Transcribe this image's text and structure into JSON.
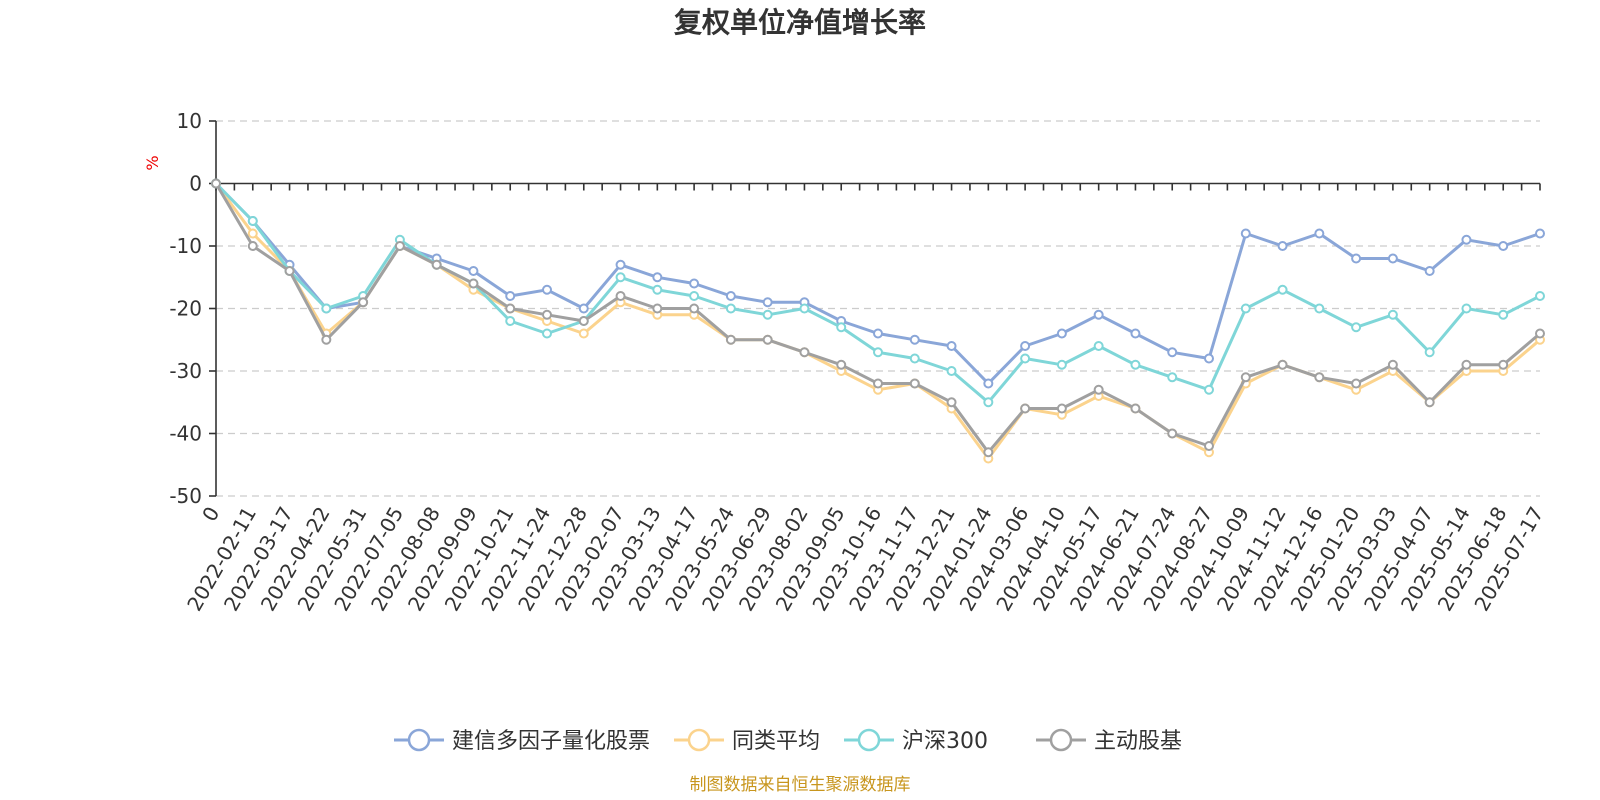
{
  "chart_data": {
    "type": "line",
    "title": "复权单位净值增长率",
    "ylabel": "%",
    "xlabel": "",
    "ylim": [
      -50,
      10
    ],
    "yticks": [
      10,
      0,
      -10,
      -20,
      -30,
      -40,
      -50
    ],
    "grid": true,
    "legend_position": "bottom",
    "x_categories": [
      "0",
      "2022-02-11",
      "2022-03-17",
      "2022-04-22",
      "2022-05-31",
      "2022-07-05",
      "2022-08-08",
      "2022-09-09",
      "2022-10-21",
      "2022-11-24",
      "2022-12-28",
      "2023-02-07",
      "2023-03-13",
      "2023-04-17",
      "2023-05-24",
      "2023-06-29",
      "2023-08-02",
      "2023-09-05",
      "2023-10-16",
      "2023-11-17",
      "2023-12-21",
      "2024-01-24",
      "2024-03-06",
      "2024-04-10",
      "2024-05-17",
      "2024-06-21",
      "2024-07-24",
      "2024-08-27",
      "2024-10-09",
      "2024-11-12",
      "2024-12-16",
      "2025-01-20",
      "2025-03-03",
      "2025-04-07",
      "2025-05-14",
      "2025-06-18",
      "2025-07-17"
    ],
    "series": [
      {
        "name": "建信多因子量化股票",
        "color": "#8aa6d8",
        "values": [
          0,
          -6,
          -13,
          -20,
          -19,
          -10,
          -12,
          -14,
          -18,
          -17,
          -20,
          -13,
          -15,
          -16,
          -18,
          -19,
          -19,
          -22,
          -24,
          -25,
          -26,
          -32,
          -26,
          -24,
          -21,
          -24,
          -27,
          -28,
          -8,
          -10,
          -8,
          -12,
          -12,
          -14,
          -9,
          -10,
          -8
        ]
      },
      {
        "name": "同类平均",
        "color": "#fbd38d",
        "values": [
          0,
          -8,
          -14,
          -24,
          -19,
          -10,
          -13,
          -17,
          -20,
          -22,
          -24,
          -19,
          -21,
          -21,
          -25,
          -25,
          -27,
          -30,
          -33,
          -32,
          -36,
          -44,
          -36,
          -37,
          -34,
          -36,
          -40,
          -43,
          -32,
          -29,
          -31,
          -33,
          -30,
          -35,
          -30,
          -30,
          -25
        ]
      },
      {
        "name": "沪深300",
        "color": "#7fd6d8",
        "values": [
          0,
          -6,
          -14,
          -20,
          -18,
          -9,
          -13,
          -16,
          -22,
          -24,
          -22,
          -15,
          -17,
          -18,
          -20,
          -21,
          -20,
          -23,
          -27,
          -28,
          -30,
          -35,
          -28,
          -29,
          -26,
          -29,
          -31,
          -33,
          -20,
          -17,
          -20,
          -23,
          -21,
          -27,
          -20,
          -21,
          -18
        ]
      },
      {
        "name": "主动股基",
        "color": "#a0a0a0",
        "values": [
          0,
          -10,
          -14,
          -25,
          -19,
          -10,
          -13,
          -16,
          -20,
          -21,
          -22,
          -18,
          -20,
          -20,
          -25,
          -25,
          -27,
          -29,
          -32,
          -32,
          -35,
          -43,
          -36,
          -36,
          -33,
          -36,
          -40,
          -42,
          -31,
          -29,
          -31,
          -32,
          -29,
          -35,
          -29,
          -29,
          -24
        ]
      }
    ]
  },
  "source_note": "制图数据来自恒生聚源数据库"
}
